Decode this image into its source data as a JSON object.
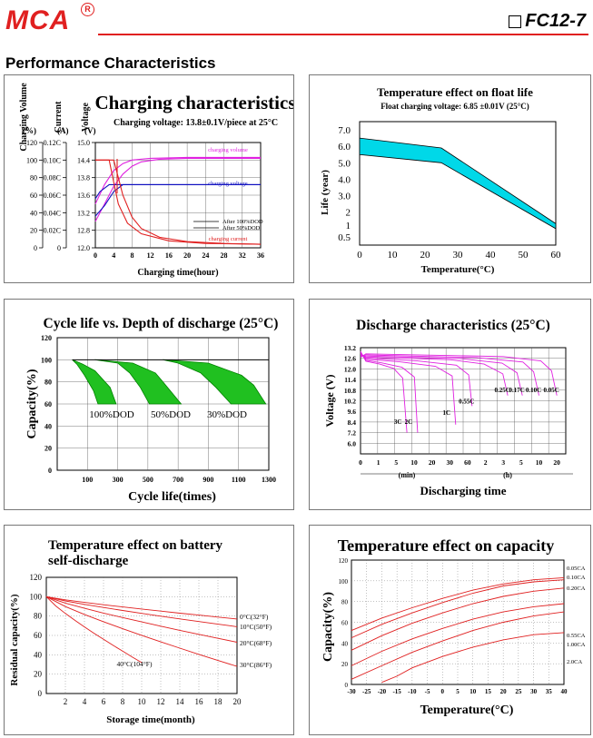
{
  "header": {
    "logo": "MCA",
    "registered": "R",
    "model": "FC12-7",
    "section_title": "Performance Characteristics"
  },
  "colors": {
    "brand_red": "#e02020",
    "curve_red": "#e02020",
    "magenta": "#e020e0",
    "blue": "#1010c0",
    "cyan": "#00d8e8",
    "green": "#20c020"
  },
  "chart_data": [
    {
      "type": "line",
      "title": "Charging characteristics",
      "subtitle": "Charging voltage: 13.8±0.1V/piece at 25°C",
      "xlabel": "Charging time(hour)",
      "xticks": [
        "0",
        "4",
        "8",
        "12",
        "16",
        "20",
        "24",
        "28",
        "32",
        "36"
      ],
      "axes": [
        {
          "label": "Charging Volume",
          "unit": "(%)",
          "ticks": [
            "120",
            "100",
            "80",
            "60",
            "40",
            "20",
            "0"
          ]
        },
        {
          "label": "Current",
          "unit": "(A)",
          "ticks": [
            "0.12C",
            "0.10C",
            "0.08C",
            "0.06C",
            "0.04C",
            "0.02C",
            "0"
          ]
        },
        {
          "label": "Voltage",
          "unit": "(V)",
          "ticks": [
            "15.0",
            "14.4",
            "13.8",
            "13.6",
            "13.2",
            "12.8",
            "12.0"
          ]
        }
      ],
      "legend": [
        "After 100%DOD",
        "After 50%DOD"
      ],
      "annotations": [
        "charging volume",
        "charging voltage",
        "charging current"
      ],
      "series": [
        {
          "name": "charging volume",
          "color": "magenta",
          "x": [
            0,
            2,
            4,
            6,
            8,
            10,
            14,
            20,
            28,
            36
          ],
          "y": [
            30,
            50,
            70,
            84,
            93,
            98,
            101,
            102,
            102,
            102
          ]
        },
        {
          "name": "charging volume",
          "color": "magenta",
          "x": [
            0,
            2,
            4,
            6,
            8,
            12,
            20,
            36
          ],
          "y": [
            50,
            72,
            88,
            96,
            100,
            102,
            103,
            103
          ]
        },
        {
          "name": "charging voltage",
          "color": "blue",
          "x": [
            0,
            2,
            4,
            6,
            8,
            12,
            20,
            36
          ],
          "y": [
            12.9,
            13.2,
            13.6,
            13.8,
            13.8,
            13.8,
            13.8,
            13.8
          ]
        },
        {
          "name": "charging voltage",
          "color": "blue",
          "x": [
            0,
            1,
            2,
            3,
            4,
            6,
            36
          ],
          "y": [
            13.4,
            13.6,
            13.7,
            13.8,
            13.8,
            13.8,
            13.8
          ]
        },
        {
          "name": "charging current",
          "color": "red",
          "x": [
            0,
            4,
            5,
            6,
            8,
            10,
            14,
            20,
            28,
            36
          ],
          "y": [
            0.1,
            0.1,
            0.08,
            0.06,
            0.035,
            0.022,
            0.012,
            0.007,
            0.005,
            0.004
          ]
        },
        {
          "name": "charging current",
          "color": "red",
          "x": [
            0,
            3,
            4,
            5,
            7,
            10,
            16,
            24,
            36
          ],
          "y": [
            0.1,
            0.1,
            0.075,
            0.05,
            0.028,
            0.016,
            0.008,
            0.005,
            0.004
          ]
        }
      ]
    },
    {
      "type": "area",
      "title": "Temperature effect on float life",
      "subtitle": "Float charging voltage: 6.85 ±0.01V (25°C)",
      "xlabel": "Temperature(°C)",
      "ylabel": "Life (year)",
      "xticks": [
        "0",
        "10",
        "20",
        "30",
        "40",
        "50",
        "60"
      ],
      "yticks": [
        "7.0",
        "6.0",
        "5.0",
        "4.0",
        "3.0",
        "2",
        "1",
        "0.5"
      ],
      "xlim": [
        0,
        60
      ],
      "ylim": [
        0,
        7.5
      ],
      "upper": {
        "x": [
          0,
          25,
          60
        ],
        "y": [
          6.5,
          5.9,
          1.3
        ]
      },
      "lower": {
        "x": [
          0,
          25,
          60
        ],
        "y": [
          5.5,
          5.0,
          1.0
        ]
      }
    },
    {
      "type": "line",
      "title": "Cycle life vs. Depth of discharge (25°C)",
      "xlabel": "Cycle life(times)",
      "ylabel": "Capacity(%)",
      "xticks": [
        "100",
        "300",
        "500",
        "700",
        "900",
        "1100",
        "1300"
      ],
      "yticks": [
        "120",
        "100",
        "80",
        "60",
        "40",
        "20",
        "0"
      ],
      "xlim": [
        -100,
        1300
      ],
      "ylim": [
        0,
        120
      ],
      "bands": [
        {
          "label": "100%DOD",
          "upper": {
            "x": [
              0,
              70,
              150,
              250,
              290
            ],
            "y": [
              100,
              96,
              90,
              75,
              60
            ]
          },
          "lower": {
            "x": [
              0,
              30,
              80,
              140,
              170
            ],
            "y": [
              100,
              96,
              86,
              72,
              60
            ]
          }
        },
        {
          "label": "50%DOD",
          "upper": {
            "x": [
              150,
              400,
              550,
              600,
              720
            ],
            "y": [
              100,
              97,
              88,
              80,
              60
            ]
          },
          "lower": {
            "x": [
              150,
              300,
              380,
              450,
              510
            ],
            "y": [
              100,
              97,
              88,
              75,
              60
            ]
          }
        },
        {
          "label": "30%DOD",
          "upper": {
            "x": [
              600,
              900,
              1120,
              1200,
              1280
            ],
            "y": [
              100,
              97,
              86,
              77,
              60
            ]
          },
          "lower": {
            "x": [
              600,
              700,
              850,
              950,
              1050
            ],
            "y": [
              100,
              97,
              88,
              75,
              60
            ]
          }
        }
      ]
    },
    {
      "type": "line",
      "title": "Discharge characteristics (25°C)",
      "xlabel": "Discharging time",
      "ylabel": "Voltage (V)",
      "xticks": [
        "0",
        "1",
        "5",
        "10",
        "20",
        "30",
        "60",
        "2",
        "3",
        "5",
        "10",
        "20"
      ],
      "x_unit_labels": [
        "(min)",
        "(h)"
      ],
      "yticks": [
        "13.2",
        "12.6",
        "12.0",
        "11.4",
        "10.8",
        "10.2",
        "9.6",
        "8.4",
        "7.2",
        "6.0"
      ],
      "series": [
        {
          "name": "3C",
          "color": "magenta",
          "end_minutes": 8,
          "end_voltage": 7.2
        },
        {
          "name": "2C",
          "color": "magenta",
          "end_minutes": 12,
          "end_voltage": 7.2
        },
        {
          "name": "1C",
          "color": "magenta",
          "end_minutes": 40,
          "end_voltage": 8.1
        },
        {
          "name": "0.55C",
          "color": "magenta",
          "end_minutes": 75,
          "end_voltage": 9.9
        },
        {
          "name": "0.25C",
          "color": "magenta",
          "end_minutes": 210,
          "end_voltage": 10.5
        },
        {
          "name": "0.17C",
          "color": "magenta",
          "end_minutes": 320,
          "end_voltage": 10.5
        },
        {
          "name": "0.10C",
          "color": "magenta",
          "end_minutes": 600,
          "end_voltage": 10.5
        },
        {
          "name": "0.05C",
          "color": "magenta",
          "end_minutes": 1200,
          "end_voltage": 10.5
        }
      ]
    },
    {
      "type": "line",
      "title": "Temperature effect on battery self-discharge",
      "xlabel": "Storage time(month)",
      "ylabel": "Residual capacity(%)",
      "xticks": [
        "2",
        "4",
        "6",
        "8",
        "10",
        "12",
        "14",
        "16",
        "18",
        "20"
      ],
      "yticks": [
        "120",
        "100",
        "80",
        "60",
        "40",
        "20",
        "0"
      ],
      "xlim": [
        0,
        20
      ],
      "ylim": [
        0,
        120
      ],
      "series": [
        {
          "name": "0°C(32°F)",
          "color": "red",
          "x": [
            0,
            20
          ],
          "y": [
            100,
            77
          ]
        },
        {
          "name": "10°C(50°F)",
          "color": "red",
          "x": [
            0,
            20
          ],
          "y": [
            100,
            69
          ]
        },
        {
          "name": "20°C(68°F)",
          "color": "red",
          "x": [
            0,
            20
          ],
          "y": [
            100,
            53
          ]
        },
        {
          "name": "30°C(86°F)",
          "color": "red",
          "x": [
            0,
            20
          ],
          "y": [
            100,
            28
          ]
        },
        {
          "name": "40°C(104°F)",
          "color": "red",
          "x": [
            0,
            10
          ],
          "y": [
            100,
            32
          ]
        }
      ]
    },
    {
      "type": "line",
      "title": "Temperature effect on capacity",
      "xlabel": "Temperature(°C)",
      "ylabel": "Capacity(%)",
      "xticks": [
        "-30",
        "-25",
        "-20",
        "-15",
        "-10",
        "-5",
        "0",
        "5",
        "10",
        "15",
        "20",
        "25",
        "30",
        "35",
        "40"
      ],
      "yticks": [
        "120",
        "100",
        "80",
        "60",
        "40",
        "20",
        "0"
      ],
      "xlim": [
        -30,
        40
      ],
      "ylim": [
        0,
        120
      ],
      "series": [
        {
          "name": "0.05CA",
          "color": "red",
          "x": [
            -30,
            -20,
            -10,
            0,
            10,
            20,
            30,
            40
          ],
          "y": [
            52,
            64,
            74,
            83,
            91,
            97,
            101,
            103
          ]
        },
        {
          "name": "0.10CA",
          "color": "red",
          "x": [
            -30,
            -20,
            -10,
            0,
            10,
            20,
            30,
            40
          ],
          "y": [
            45,
            58,
            69,
            79,
            88,
            95,
            99,
            101
          ]
        },
        {
          "name": "0.20CA",
          "color": "red",
          "x": [
            -30,
            -20,
            -10,
            0,
            10,
            20,
            30,
            40
          ],
          "y": [
            33,
            47,
            59,
            69,
            78,
            85,
            90,
            93
          ]
        },
        {
          "name": "0.55CA",
          "color": "red",
          "x": [
            -30,
            -20,
            -10,
            0,
            10,
            20,
            30,
            40
          ],
          "y": [
            18,
            32,
            44,
            54,
            63,
            70,
            75,
            78
          ]
        },
        {
          "name": "1.00CA",
          "color": "red",
          "x": [
            -30,
            -20,
            -10,
            0,
            10,
            20,
            30,
            40
          ],
          "y": [
            5,
            18,
            31,
            42,
            52,
            60,
            66,
            70
          ]
        },
        {
          "name": "2.0CA",
          "color": "red",
          "x": [
            -20,
            -15,
            -10,
            0,
            10,
            20,
            30,
            40
          ],
          "y": [
            2,
            8,
            16,
            27,
            36,
            43,
            48,
            50
          ]
        }
      ]
    }
  ]
}
